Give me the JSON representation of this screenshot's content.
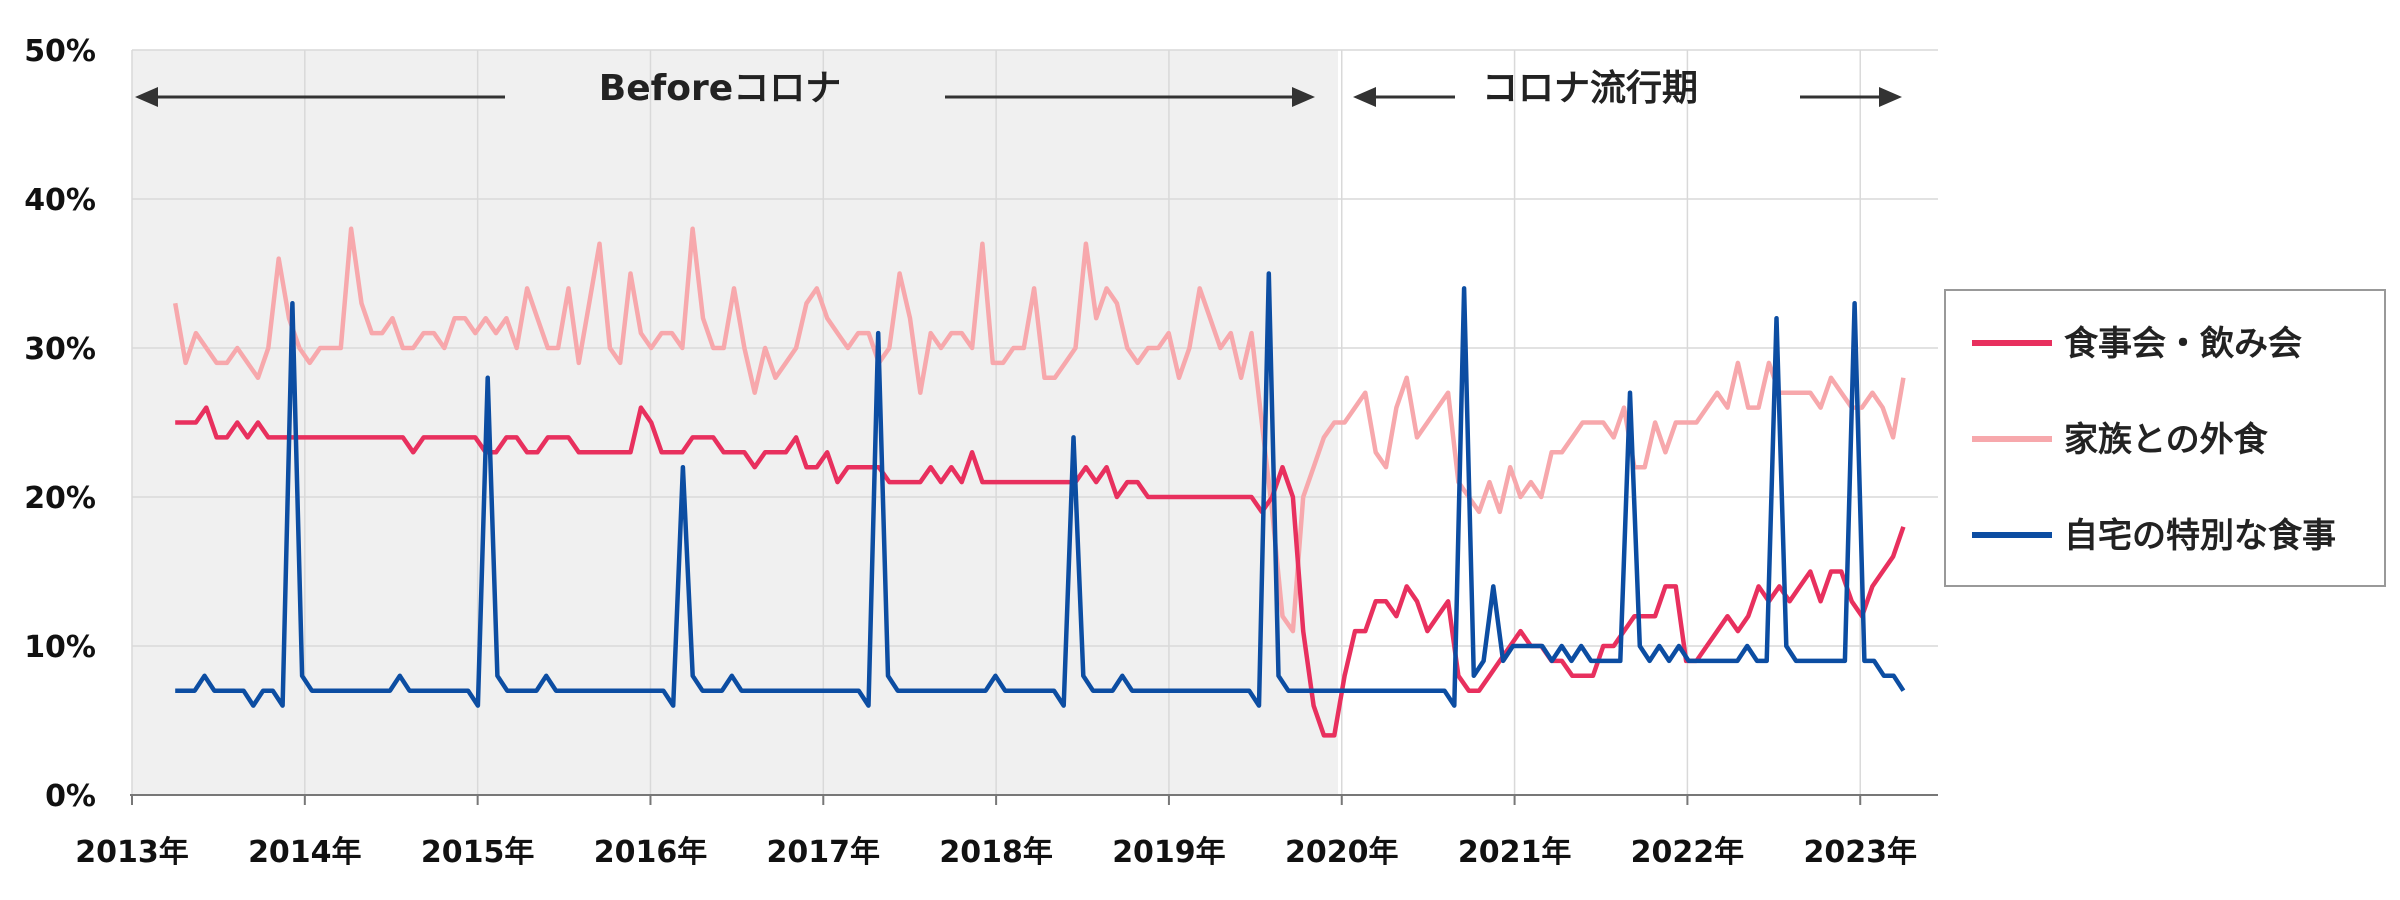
{
  "chart_data": {
    "type": "line",
    "x_start": "2013-04",
    "x_end": "2023-04",
    "ylim": [
      0,
      50
    ],
    "y_ticks": [
      "0%",
      "10%",
      "20%",
      "30%",
      "40%",
      "50%"
    ],
    "x_ticks": [
      "2013年",
      "2014年",
      "2015年",
      "2016年",
      "2017年",
      "2018年",
      "2019年",
      "2020年",
      "2021年",
      "2022年",
      "2023年"
    ],
    "periods": {
      "before_label": "Beforeコロナ",
      "during_label": "コロナ流行期",
      "boundary": "2020-01"
    },
    "legend": "right",
    "grid": true,
    "series": [
      {
        "name": "家族との外食",
        "color": "#F7A8AC",
        "values": [
          33,
          29,
          31,
          30,
          29,
          29,
          30,
          29,
          28,
          30,
          36,
          32,
          30,
          29,
          30,
          30,
          30,
          38,
          33,
          31,
          31,
          32,
          30,
          30,
          31,
          31,
          30,
          32,
          32,
          31,
          32,
          31,
          32,
          30,
          34,
          32,
          30,
          30,
          34,
          29,
          33,
          37,
          30,
          29,
          35,
          31,
          30,
          31,
          31,
          30,
          38,
          32,
          30,
          30,
          34,
          30,
          27,
          30,
          28,
          29,
          30,
          33,
          34,
          32,
          31,
          30,
          31,
          31,
          29,
          30,
          35,
          32,
          27,
          31,
          30,
          31,
          31,
          30,
          37,
          29,
          29,
          30,
          30,
          34,
          28,
          28,
          29,
          30,
          37,
          32,
          34,
          33,
          30,
          29,
          30,
          30,
          31,
          28,
          30,
          34,
          32,
          30,
          31,
          28,
          31,
          25,
          19,
          12,
          11,
          20,
          22,
          24,
          25,
          25,
          26,
          27,
          23,
          22,
          26,
          28,
          24,
          25,
          26,
          27,
          21,
          20,
          19,
          21,
          19,
          22,
          20,
          21,
          20,
          23,
          23,
          24,
          25,
          25,
          25,
          24,
          26,
          22,
          22,
          25,
          23,
          25,
          25,
          25,
          26,
          27,
          26,
          29,
          26,
          26,
          29,
          27,
          27,
          27,
          27,
          26,
          28,
          27,
          26,
          26,
          27,
          26,
          24,
          28
        ]
      },
      {
        "name": "食事会・飲み会",
        "color": "#E8305E",
        "values": [
          25,
          25,
          25,
          26,
          24,
          24,
          25,
          24,
          25,
          24,
          24,
          24,
          24,
          24,
          24,
          24,
          24,
          24,
          24,
          24,
          24,
          24,
          24,
          23,
          24,
          24,
          24,
          24,
          24,
          24,
          23,
          23,
          24,
          24,
          23,
          23,
          24,
          24,
          24,
          23,
          23,
          23,
          23,
          23,
          23,
          26,
          25,
          23,
          23,
          23,
          24,
          24,
          24,
          23,
          23,
          23,
          22,
          23,
          23,
          23,
          24,
          22,
          22,
          23,
          21,
          22,
          22,
          22,
          22,
          21,
          21,
          21,
          21,
          22,
          21,
          22,
          21,
          23,
          21,
          21,
          21,
          21,
          21,
          21,
          21,
          21,
          21,
          21,
          22,
          21,
          22,
          20,
          21,
          21,
          20,
          20,
          20,
          20,
          20,
          20,
          20,
          20,
          20,
          20,
          20,
          19,
          20,
          22,
          20,
          11,
          6,
          4,
          4,
          8,
          11,
          11,
          13,
          13,
          12,
          14,
          13,
          11,
          12,
          13,
          8,
          7,
          7,
          8,
          9,
          10,
          11,
          10,
          10,
          9,
          9,
          8,
          8,
          8,
          10,
          10,
          11,
          12,
          12,
          12,
          14,
          14,
          9,
          9,
          10,
          11,
          12,
          11,
          12,
          14,
          13,
          14,
          13,
          14,
          15,
          13,
          15,
          15,
          13,
          12,
          14,
          15,
          16,
          18
        ]
      },
      {
        "name": "自宅の特別な食事",
        "color": "#0C4DA2",
        "values": [
          7,
          7,
          7,
          8,
          7,
          7,
          7,
          7,
          6,
          7,
          7,
          6,
          33,
          8,
          7,
          7,
          7,
          7,
          7,
          7,
          7,
          7,
          7,
          8,
          7,
          7,
          7,
          7,
          7,
          7,
          7,
          6,
          28,
          8,
          7,
          7,
          7,
          7,
          8,
          7,
          7,
          7,
          7,
          7,
          7,
          7,
          7,
          7,
          7,
          7,
          7,
          6,
          22,
          8,
          7,
          7,
          7,
          8,
          7,
          7,
          7,
          7,
          7,
          7,
          7,
          7,
          7,
          7,
          7,
          7,
          7,
          6,
          31,
          8,
          7,
          7,
          7,
          7,
          7,
          7,
          7,
          7,
          7,
          7,
          8,
          7,
          7,
          7,
          7,
          7,
          7,
          6,
          24,
          8,
          7,
          7,
          7,
          8,
          7,
          7,
          7,
          7,
          7,
          7,
          7,
          7,
          7,
          7,
          7,
          7,
          7,
          6,
          35,
          8,
          7,
          7,
          7,
          7,
          7,
          7,
          7,
          7,
          7,
          7,
          7,
          7,
          7,
          7,
          7,
          7,
          7,
          6,
          34,
          8,
          9,
          14,
          9,
          10,
          10,
          10,
          10,
          9,
          10,
          9,
          10,
          9,
          9,
          9,
          9,
          27,
          10,
          9,
          10,
          9,
          10,
          9,
          9,
          9,
          9,
          9,
          9,
          10,
          9,
          9,
          32,
          10,
          9,
          9,
          9,
          9,
          9,
          9,
          33,
          9,
          9,
          8,
          8,
          7
        ]
      }
    ]
  }
}
